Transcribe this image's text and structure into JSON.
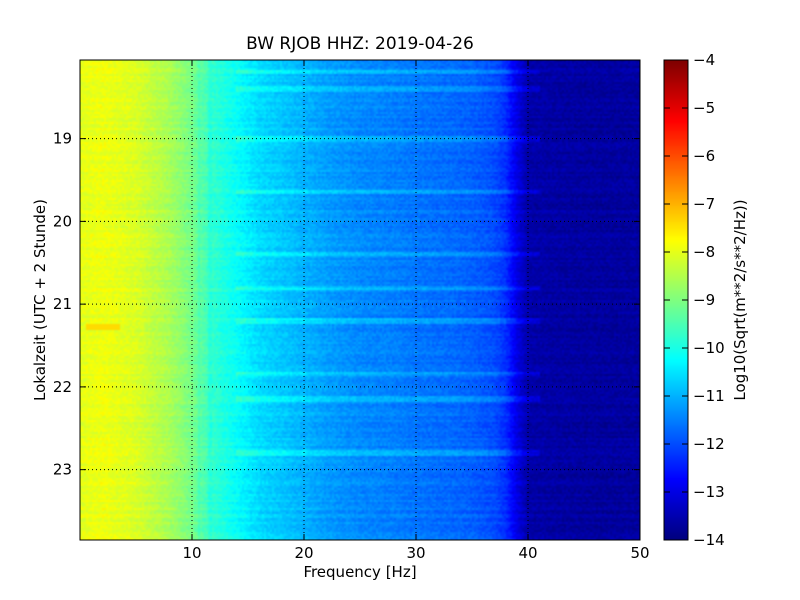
{
  "chart_data": {
    "type": "heatmap",
    "title": "BW RJOB HHZ: 2019-04-26",
    "xlabel": "Frequency [Hz]",
    "ylabel": "Lokalzeit (UTC + 2 Stunde)",
    "xlim": [
      0,
      50
    ],
    "ylim": [
      18.05,
      23.85
    ],
    "y_inverted": true,
    "x_ticks": [
      10,
      20,
      30,
      40,
      50
    ],
    "y_ticks": [
      19,
      20,
      21,
      22,
      23
    ],
    "grid": true,
    "colormap": "jet",
    "colorbar": {
      "label": "Log10(Sqrt(m**2/s**2/Hz))",
      "range": [
        -14,
        -4
      ],
      "ticks": [
        -4,
        -5,
        -6,
        -7,
        -8,
        -9,
        -10,
        -11,
        -12,
        -13,
        -14
      ]
    },
    "frequency_profile_hz": [
      0,
      2,
      5,
      8,
      10,
      12,
      14,
      16,
      18,
      20,
      22,
      25,
      28,
      30,
      33,
      35,
      37,
      38,
      39,
      40,
      45,
      50
    ],
    "frequency_profile_log10": [
      -8.0,
      -7.9,
      -8.1,
      -8.6,
      -9.1,
      -9.8,
      -10.2,
      -10.6,
      -10.8,
      -11.0,
      -11.2,
      -11.4,
      -11.5,
      -11.6,
      -11.7,
      -11.8,
      -12.0,
      -12.3,
      -13.0,
      -13.6,
      -13.7,
      -13.7
    ],
    "noise_bands_hour": [
      18.2,
      18.4,
      19.0,
      19.65,
      20.4,
      20.8,
      21.2,
      21.85,
      22.15,
      22.8
    ],
    "bright_spot": {
      "hour": 21.28,
      "freq_from_hz": 0.5,
      "freq_to_hz": 3.5,
      "log10": -7.4
    }
  }
}
